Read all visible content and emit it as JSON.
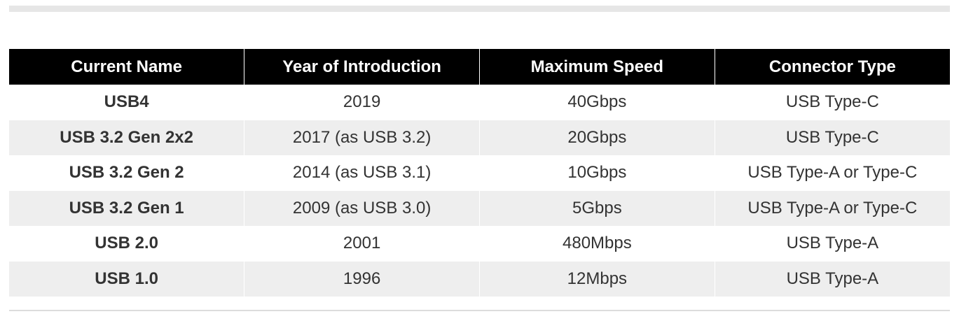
{
  "table": {
    "headers": [
      "Current Name",
      "Year of Introduction",
      "Maximum Speed",
      "Connector Type"
    ],
    "rows": [
      [
        "USB4",
        "2019",
        "40Gbps",
        "USB Type-C"
      ],
      [
        "USB 3.2 Gen 2x2",
        "2017 (as USB 3.2)",
        "20Gbps",
        "USB Type-C"
      ],
      [
        "USB 3.2 Gen 2",
        "2014 (as USB 3.1)",
        "10Gbps",
        "USB Type-A or Type-C"
      ],
      [
        "USB 3.2 Gen 1",
        "2009 (as USB 3.0)",
        "5Gbps",
        "USB Type-A or Type-C"
      ],
      [
        "USB 2.0",
        "2001",
        "480Mbps",
        "USB Type-A"
      ],
      [
        "USB 1.0",
        "1996",
        "12Mbps",
        "USB Type-A"
      ]
    ]
  }
}
